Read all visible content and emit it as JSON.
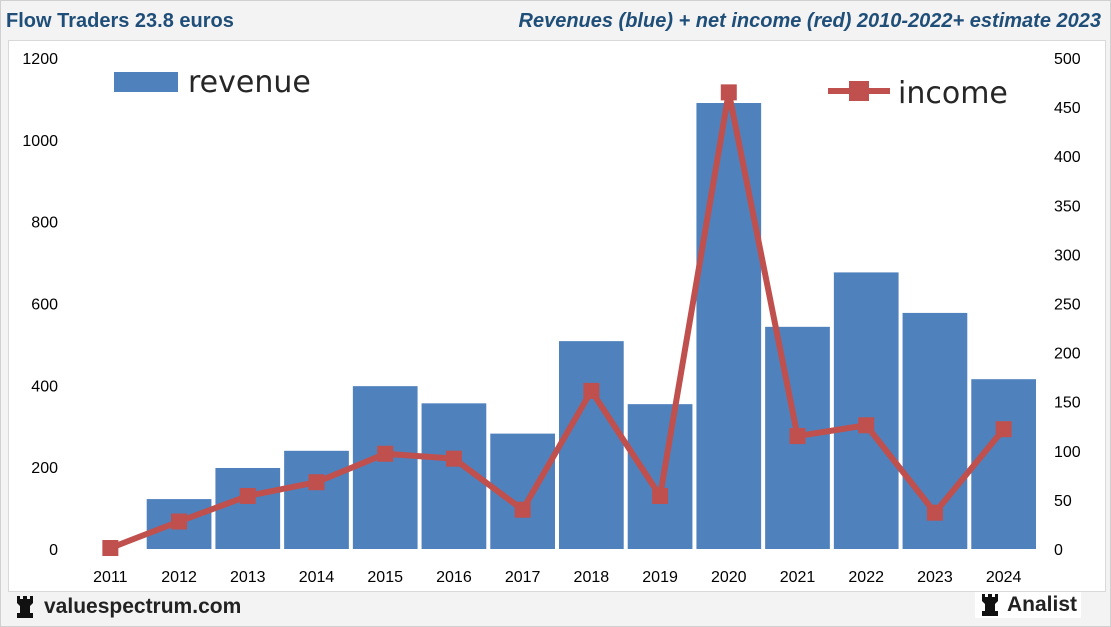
{
  "header": {
    "left_title": "Flow Traders 23.8 euros",
    "right_title": "Revenues (blue) + net income (red) 2010-2022+ estimate 2023"
  },
  "footer": {
    "site": "valuespectrum.com",
    "brand": "Analist",
    "icon": "rook-icon"
  },
  "colors": {
    "revenue": "#4f81bd",
    "income": "#c0504d",
    "title": "#1f4e79"
  },
  "chart_data": {
    "type": "bar+line",
    "categories": [
      "2011",
      "2012",
      "2013",
      "2014",
      "2015",
      "2016",
      "2017",
      "2018",
      "2019",
      "2020",
      "2021",
      "2022",
      "2023",
      "2024"
    ],
    "series": [
      {
        "name": "revenue",
        "type": "bar",
        "axis": "left",
        "values": [
          0,
          122,
          198,
          240,
          398,
          356,
          282,
          508,
          354,
          1090,
          543,
          676,
          577,
          415
        ]
      },
      {
        "name": "income",
        "type": "line",
        "axis": "right",
        "values": [
          1,
          28,
          54,
          68,
          97,
          92,
          40,
          161,
          54,
          465,
          115,
          126,
          37,
          122
        ]
      }
    ],
    "left_axis": {
      "min": 0,
      "max": 1200,
      "ticks": [
        0,
        200,
        400,
        600,
        800,
        1000,
        1200
      ]
    },
    "right_axis": {
      "min": 0,
      "max": 500,
      "ticks": [
        0,
        50,
        100,
        150,
        200,
        250,
        300,
        350,
        400,
        450,
        500
      ]
    },
    "legend": {
      "revenue_label": "revenue",
      "income_label": "income"
    }
  }
}
